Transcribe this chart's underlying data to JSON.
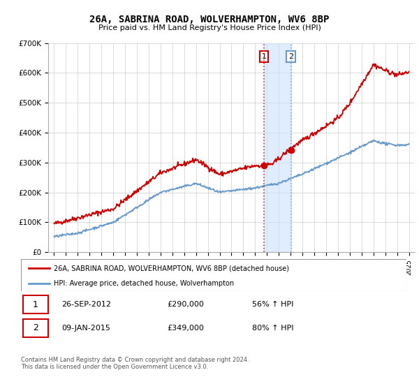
{
  "title": "26A, SABRINA ROAD, WOLVERHAMPTON, WV6 8BP",
  "subtitle": "Price paid vs. HM Land Registry's House Price Index (HPI)",
  "legend_line1": "26A, SABRINA ROAD, WOLVERHAMPTON, WV6 8BP (detached house)",
  "legend_line2": "HPI: Average price, detached house, Wolverhampton",
  "sale1_date": "26-SEP-2012",
  "sale1_price_str": "£290,000",
  "sale1_pct": "56% ↑ HPI",
  "sale2_date": "09-JAN-2015",
  "sale2_price_str": "£349,000",
  "sale2_pct": "80% ↑ HPI",
  "footer": "Contains HM Land Registry data © Crown copyright and database right 2024.\nThis data is licensed under the Open Government Licence v3.0.",
  "ylim": [
    0,
    700000
  ],
  "yticks": [
    0,
    100000,
    200000,
    300000,
    400000,
    500000,
    600000,
    700000
  ],
  "ytick_labels": [
    "£0",
    "£100K",
    "£200K",
    "£300K",
    "£400K",
    "£500K",
    "£600K",
    "£700K"
  ],
  "red_color": "#cc0000",
  "blue_color": "#6699cc",
  "sale1_year": 2012.75,
  "sale2_year": 2015.03,
  "grid_color": "#cccccc",
  "shade_color": "#cce0ff",
  "xlim_left": 1994.5,
  "xlim_right": 2025.5
}
